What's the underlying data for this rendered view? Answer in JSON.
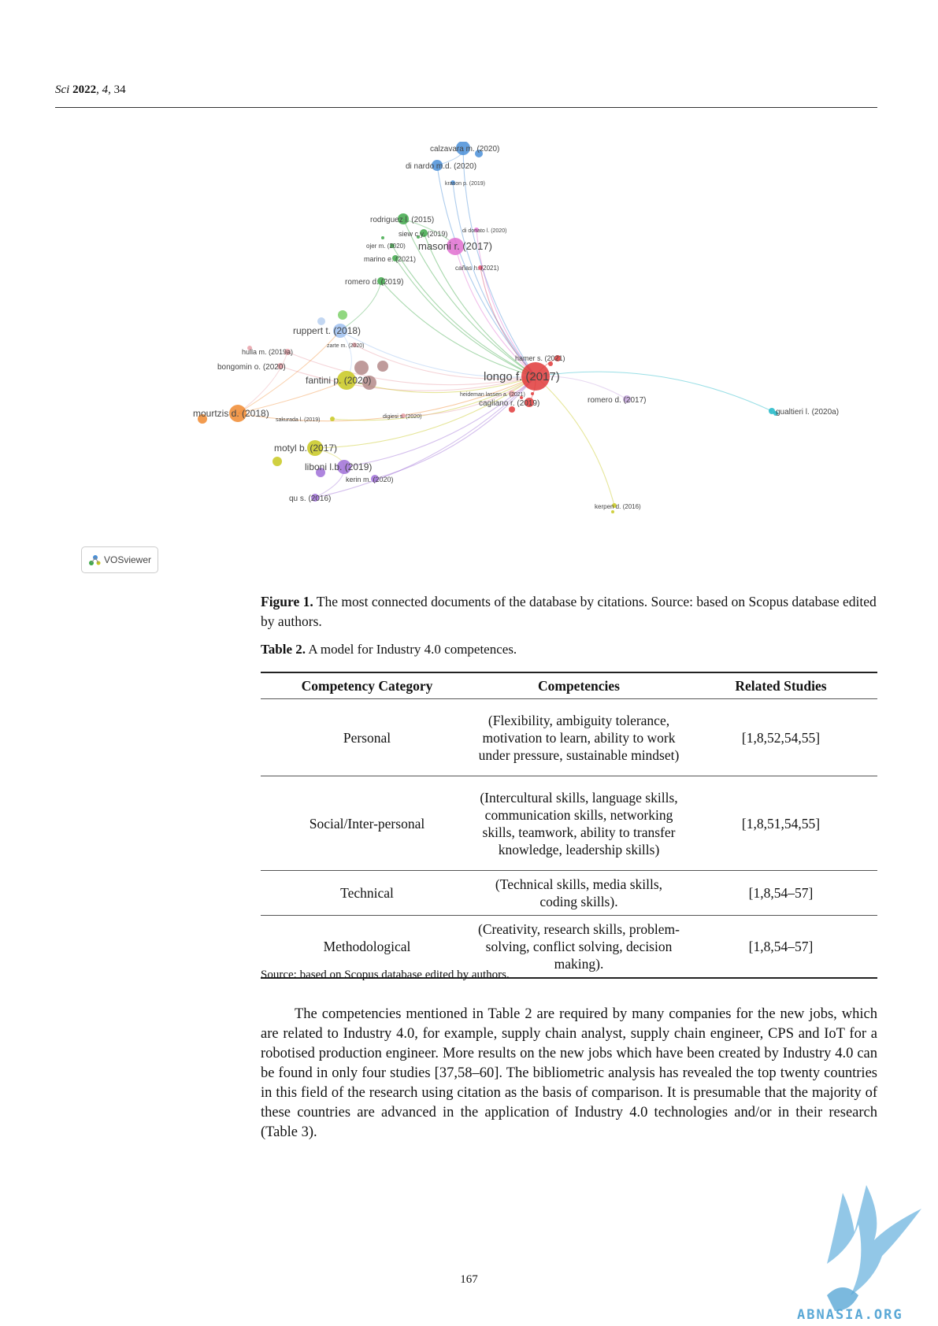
{
  "header": {
    "journal": "Sci",
    "year": "2022",
    "volume": "4",
    "article": "34"
  },
  "figure": {
    "nodes": [
      {
        "label": "calzavara m. (2020)",
        "color": "#4a8fd8"
      },
      {
        "label": "di nardo m.d. (2020)",
        "color": "#4a8fd8"
      },
      {
        "label": "krason p. (2019)",
        "color": "#4a8fd8"
      },
      {
        "label": "rodriguez l. (2015)",
        "color": "#3fa84a"
      },
      {
        "label": "siew c.y. (2019)",
        "color": "#3fa84a"
      },
      {
        "label": "di donato l. (2020)",
        "color": "#e06fd0"
      },
      {
        "label": "ojer m. (2020)",
        "color": "#3fa84a"
      },
      {
        "label": "masoni r. (2017)",
        "color": "#e06fd0"
      },
      {
        "label": "marino e. (2021)",
        "color": "#3fa84a"
      },
      {
        "label": "cañas h. (2021)",
        "color": "#d84a6a"
      },
      {
        "label": "romero d. (2019)",
        "color": "#3fa84a"
      },
      {
        "label": "ruppert t. (2018)",
        "color": "#9ec0f0"
      },
      {
        "label": "zarte m. (2020)",
        "color": "#e8a0a8"
      },
      {
        "label": "hulla m. (2019a)",
        "color": "#e8a0a8"
      },
      {
        "label": "bongomin o. (2020)",
        "color": "#e8a0a8"
      },
      {
        "label": "fantini p. (2020)",
        "color": "#c8c820"
      },
      {
        "label": "hamer s. (2021)",
        "color": "#e03a3a"
      },
      {
        "label": "longo f. (2017)",
        "color": "#e03a3a"
      },
      {
        "label": "heideman lassen a. (2021)",
        "color": "#e8a0a8"
      },
      {
        "label": "cagliano r. (2019)",
        "color": "#e03a3a"
      },
      {
        "label": "romero d. (2017)",
        "color": "#c8a8e0"
      },
      {
        "label": "gualtieri l. (2020a)",
        "color": "#20b8c8"
      },
      {
        "label": "mourtzis d. (2018)",
        "color": "#f08a30"
      },
      {
        "label": "sakurada l. (2019)",
        "color": "#c8c820"
      },
      {
        "label": "digiesi s. (2020)",
        "color": "#e8a0a8"
      },
      {
        "label": "motyl b. (2017)",
        "color": "#c8c820"
      },
      {
        "label": "liboni l.b. (2019)",
        "color": "#a070d8"
      },
      {
        "label": "kerin m. (2020)",
        "color": "#a070d8"
      },
      {
        "label": "qu s. (2016)",
        "color": "#a070d8"
      },
      {
        "label": "kerpen d. (2016)",
        "color": "#c8c820"
      }
    ],
    "badge": "VOSviewer",
    "caption_label": "Figure 1.",
    "caption_text": "The most connected documents of the database by citations. Source: based on Scopus database edited by authors."
  },
  "table": {
    "caption_label": "Table 2.",
    "caption_text": "A model for Industry 4.0 competences.",
    "headers": [
      "Competency Category",
      "Competencies",
      "Related Studies"
    ],
    "rows": [
      {
        "category": "Personal",
        "competencies": "(Flexibility, ambiguity tolerance, motivation to learn, ability to work under pressure, sustainable mindset)",
        "studies": "[1,8,52,54,55]"
      },
      {
        "category": "Social/Inter-personal",
        "competencies": "(Intercultural skills, language skills, communication skills, networking skills, teamwork, ability to transfer knowledge, leadership skills)",
        "studies": "[1,8,51,54,55]"
      },
      {
        "category": "Technical",
        "competencies": "(Technical skills, media skills, coding skills).",
        "studies": "[1,8,54–57]"
      },
      {
        "category": "Methodological",
        "competencies": "(Creativity, research skills, problem-solving, conflict solving, decision making).",
        "studies": "[1,8,54–57]"
      }
    ],
    "source": "Source: based on Scopus database edited by authors."
  },
  "body_paragraph": "The competencies mentioned in Table 2 are required by many companies for the new jobs, which are related to Industry 4.0, for example, supply chain analyst, supply chain engineer, CPS and IoT for a robotised production engineer. More results on the new jobs which have been created by Industry 4.0 can be found in only four studies [37,58–60]. The bibliometric analysis has revealed the top twenty countries in this field of the research using citation as the basis of comparison. It is presumable that the majority of these countries are advanced in the application of Industry 4.0 technologies and/or in their research (Table 3).",
  "page_number": "167",
  "watermark": "ABNASIA.ORG"
}
